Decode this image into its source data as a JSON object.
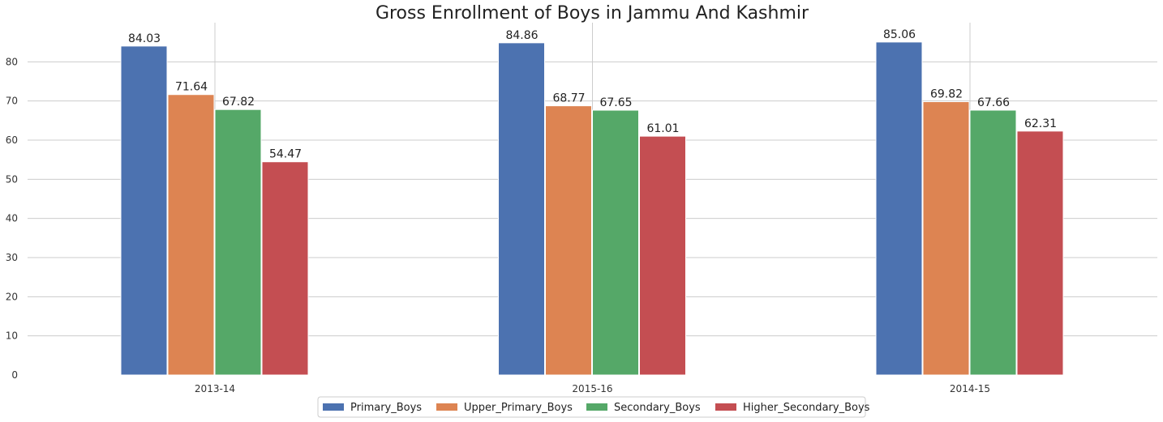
{
  "chart_data": {
    "type": "bar",
    "title": "Gross Enrollment of Boys in Jammu And Kashmir",
    "xlabel": "",
    "ylabel": "",
    "categories": [
      "2013-14",
      "2015-16",
      "2014-15"
    ],
    "series": [
      {
        "name": "Primary_Boys",
        "color": "#4c72b0",
        "values": [
          84.03,
          84.86,
          85.06
        ],
        "labels": [
          "84.03",
          "84.86",
          "85.06"
        ]
      },
      {
        "name": "Upper_Primary_Boys",
        "color": "#dd8452",
        "values": [
          71.64,
          68.77,
          69.82
        ],
        "labels": [
          "71.64",
          "68.77",
          "69.82"
        ]
      },
      {
        "name": "Secondary_Boys",
        "color": "#55a868",
        "values": [
          67.82,
          67.65,
          67.66
        ],
        "labels": [
          "67.82",
          "67.65",
          "67.66"
        ]
      },
      {
        "name": "Higher_Secondary_Boys",
        "color": "#c44e52",
        "values": [
          54.47,
          61.01,
          62.31
        ],
        "labels": [
          "54.47",
          "61.01",
          "62.31"
        ]
      }
    ],
    "ylim": [
      0,
      90
    ],
    "yticks": [
      "0",
      "10",
      "20",
      "30",
      "40",
      "50",
      "60",
      "70",
      "80"
    ],
    "grid": true,
    "legend_position": "bottom-center"
  }
}
